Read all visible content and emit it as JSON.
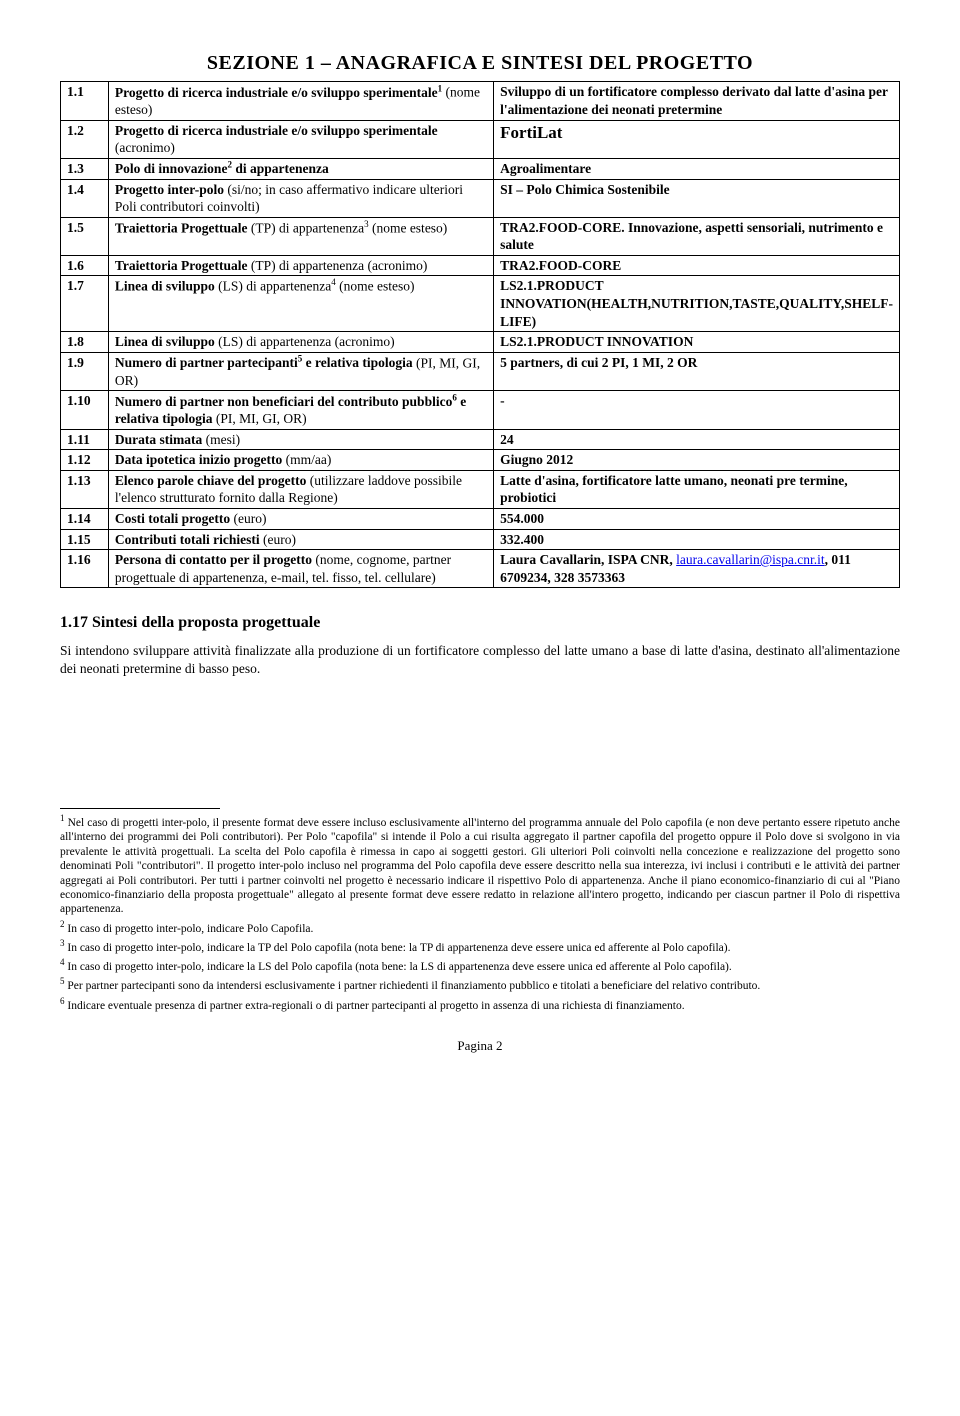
{
  "title": "SEZIONE 1 – ANAGRAFICA E SINTESI DEL PROGETTO",
  "rows": [
    {
      "num": "1.1",
      "label": "Progetto di ricerca industriale e/o sviluppo sperimentale<span class='sup'>1</span> (nome esteso)",
      "value": "Sviluppo di un fortificatore complesso derivato dal latte d'asina per l'alimentazione dei neonati pretermine",
      "boldLabel": true,
      "boldValue": true
    },
    {
      "num": "1.2",
      "label": "Progetto di ricerca industriale e/o sviluppo sperimentale (acronimo)",
      "value": "<span class='big'>FortiLat</span>",
      "boldLabel": true
    },
    {
      "num": "1.3",
      "label": "Polo di innovazione<span class='sup'>2</span> di appartenenza",
      "value": "Agroalimentare",
      "boldLabel": true,
      "boldValue": true
    },
    {
      "num": "1.4",
      "label": "Progetto inter-polo (si/no; in caso affermativo indicare ulteriori Poli contributori coinvolti)",
      "value": "SI – Polo Chimica Sostenibile",
      "boldLabel": true,
      "boldValue": true
    },
    {
      "num": "1.5",
      "label": "Traiettoria Progettuale (TP) di appartenenza<span class='sup'>3</span> (nome esteso)",
      "value": "TRA2.FOOD-CORE. Innovazione, aspetti sensoriali, nutrimento e salute",
      "boldLabel": true,
      "boldValue": true
    },
    {
      "num": "1.6",
      "label": "Traiettoria Progettuale (TP) di appartenenza (acronimo)",
      "value": "TRA2.FOOD-CORE",
      "boldLabel": true,
      "boldValue": true
    },
    {
      "num": "1.7",
      "label": "Linea di sviluppo (LS) di appartenenza<span class='sup'>4</span> (nome esteso)",
      "value": "LS2.1.PRODUCT INNOVATION(HEALTH,NUTRITION,TASTE,QUALITY,SHELF-LIFE)",
      "boldLabel": true,
      "boldValue": true
    },
    {
      "num": "1.8",
      "label": "Linea di sviluppo (LS) di appartenenza (acronimo)",
      "value": "LS2.1.PRODUCT INNOVATION",
      "boldLabel": true,
      "boldValue": true
    },
    {
      "num": "1.9",
      "label": "Numero di partner partecipanti<span class='sup'>5</span> e relativa tipologia (PI, MI, GI, OR)",
      "value": "5 partners, di cui 2 PI, 1 MI, 2 OR",
      "boldLabel": true,
      "boldValue": true
    },
    {
      "num": "1.10",
      "label": "Numero di partner non beneficiari del contributo pubblico<span class='sup'>6</span>  e relativa tipologia (PI, MI, GI, OR)",
      "value": "-",
      "boldLabel": true,
      "boldValue": true
    },
    {
      "num": "1.11",
      "label": "Durata stimata (mesi)",
      "value": "24",
      "boldLabel": true,
      "boldValue": true
    },
    {
      "num": "1.12",
      "label": "Data ipotetica inizio progetto (mm/aa)",
      "value": "Giugno 2012",
      "boldLabel": true,
      "boldValue": true
    },
    {
      "num": "1.13",
      "label": "Elenco parole chiave del progetto (utilizzare laddove possibile l'elenco strutturato fornito dalla Regione)",
      "value": "Latte d'asina, fortificatore latte umano, neonati pre termine, probiotici",
      "boldLabel": true,
      "boldValue": true
    },
    {
      "num": "1.14",
      "label": "Costi totali progetto (euro)",
      "value": "554.000",
      "boldLabel": true,
      "boldValue": true
    },
    {
      "num": "1.15",
      "label": "Contributi totali richiesti (euro)",
      "value": "332.400",
      "boldLabel": true,
      "boldValue": true
    },
    {
      "num": "1.16",
      "label": "Persona di contatto per il progetto (nome, cognome, partner progettuale di appartenenza, e-mail, tel. fisso, tel. cellulare)",
      "value": "<span class='bold'>Laura Cavallarin, ISPA CNR,</span> <a class='link' href='#'>laura.cavallarin@ispa.cnr.it</a><span class='bold'>, 011 6709234, 328 3573363</span>",
      "boldLabel": true
    }
  ],
  "subheading": "1.17 Sintesi della proposta progettuale",
  "bodytext": "Si intendono sviluppare attività finalizzate alla produzione di un fortificatore complesso del latte umano a base di latte d'asina, destinato all'alimentazione dei neonati pretermine di basso peso.",
  "footnotes": [
    "<span class='sup'>1</span> Nel caso di progetti inter-polo, il presente format deve essere incluso esclusivamente all'interno del programma annuale del Polo capofila (e non deve pertanto essere ripetuto anche all'interno dei programmi dei Poli contributori). Per Polo \"capofila\" si intende il Polo a cui risulta aggregato il partner capofila del progetto oppure il Polo dove si svolgono in via prevalente le attività progettuali. La scelta del Polo capofila è rimessa in capo ai soggetti gestori. Gli ulteriori Poli coinvolti nella concezione e realizzazione del progetto sono denominati Poli \"contributori\". Il progetto inter-polo incluso nel programma del Polo capofila deve essere descritto nella sua interezza, ivi inclusi i contributi e le attività dei partner aggregati ai Poli contributori. Per tutti i partner coinvolti nel progetto è necessario indicare il rispettivo Polo di appartenenza. Anche il piano economico-finanziario di cui al \"Piano economico-finanziario della proposta progettuale\" allegato al presente format deve essere redatto in relazione all'intero progetto, indicando per ciascun partner il Polo di rispettiva appartenenza.",
    "<span class='sup'>2</span> In caso di progetto inter-polo, indicare Polo Capofila.",
    "<span class='sup'>3</span> In caso di progetto inter-polo, indicare la TP del Polo capofila (nota bene: la TP di appartenenza deve essere unica ed afferente al Polo capofila).",
    "<span class='sup'>4</span> In caso di progetto inter-polo, indicare la LS del Polo capofila (nota bene: la LS di appartenenza deve essere unica ed afferente al Polo capofila).",
    "<span class='sup'>5</span> Per partner partecipanti sono da intendersi esclusivamente i partner richiedenti il finanziamento pubblico e titolati a beneficiare del relativo contributo.",
    "<span class='sup'>6</span> Indicare eventuale presenza di partner extra-regionali o di partner partecipanti al progetto in assenza di una richiesta di finanziamento."
  ],
  "pagenum": "Pagina 2"
}
